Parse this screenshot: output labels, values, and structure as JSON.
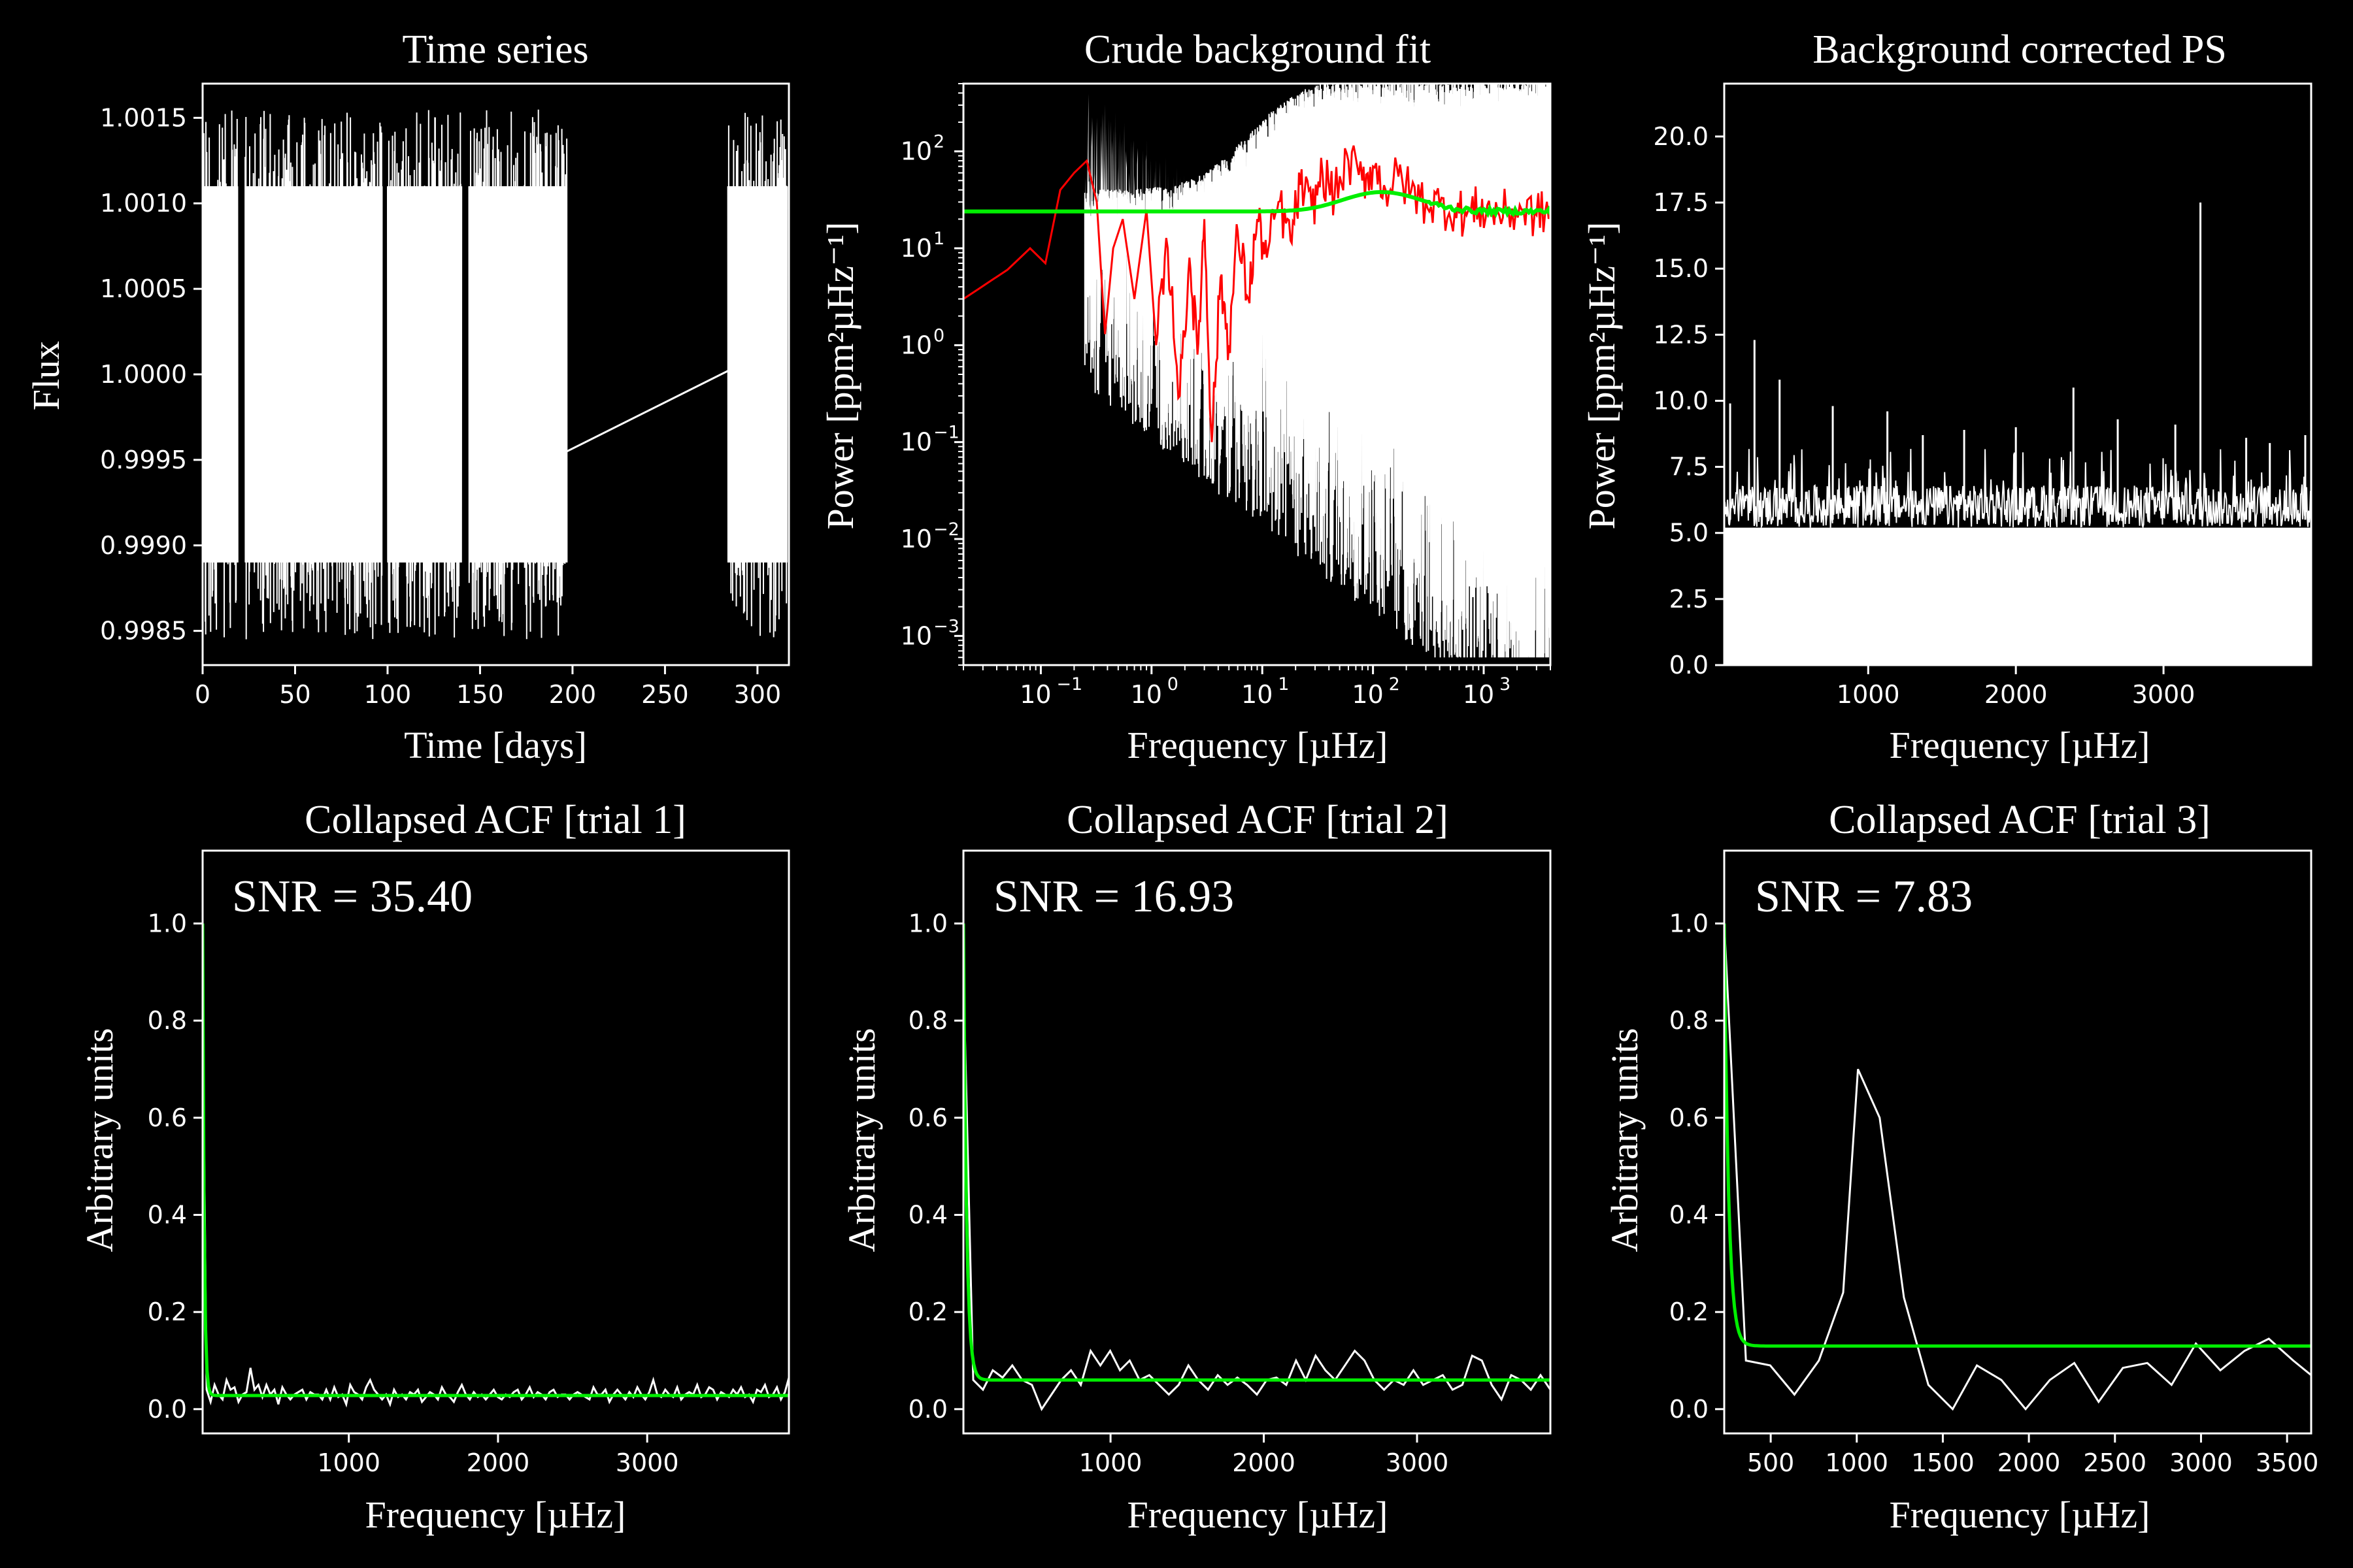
{
  "colors": {
    "background": "#000000",
    "data": "#ffffff",
    "smooth": "#ff0000",
    "fit": "#00ee00"
  },
  "chart_data": [
    {
      "id": "ts",
      "type": "line",
      "title": "Time series",
      "xlabel": "Time [days]",
      "ylabel": "Flux",
      "xlim": [
        0,
        317
      ],
      "ylim": [
        0.9983,
        1.0017
      ],
      "xticks": [
        0,
        50,
        100,
        150,
        200,
        250,
        300
      ],
      "yticks": [
        0.9985,
        0.999,
        0.9995,
        1.0,
        1.0005,
        1.001,
        1.0015
      ],
      "ytick_labels": [
        "0.9985",
        "0.9990",
        "0.9995",
        "1.0000",
        "1.0005",
        "1.0010",
        "1.0015"
      ],
      "segments": [
        [
          0,
          19
        ],
        [
          23,
          97
        ],
        [
          100,
          140
        ],
        [
          144,
          197
        ],
        [
          284,
          316
        ]
      ],
      "flux_band": [
        0.9989,
        1.0011
      ],
      "bridge": [
        [
          197,
          0.99955
        ],
        [
          284,
          1.00002
        ]
      ]
    },
    {
      "id": "bg",
      "type": "line",
      "title": "Crude background fit",
      "xlabel": "Frequency [µHz]",
      "ylabel": "Power [ppm²µHz⁻¹]",
      "xscale": "log",
      "yscale": "log",
      "xlim": [
        0.02,
        4000
      ],
      "ylim": [
        0.0005,
        500
      ],
      "xticks": [
        0.1,
        1,
        10,
        100,
        1000
      ],
      "xtick_exponents": [
        "−1",
        "0",
        "1",
        "2",
        "3"
      ],
      "yticks": [
        0.001,
        0.01,
        0.1,
        1,
        10,
        100
      ],
      "ytick_exponents": [
        "−3",
        "−2",
        "−1",
        "0",
        "1",
        "2"
      ],
      "tick_base": "10",
      "fit_level": 24,
      "fit_bump_peak": [
        120,
        38
      ],
      "smooth_series": {
        "x": [
          0.02,
          0.05,
          0.08,
          0.11,
          0.15,
          0.2,
          0.26,
          0.32,
          0.38,
          0.45,
          0.55,
          0.7,
          0.9,
          1.1,
          1.4,
          1.8,
          2.2,
          2.6,
          3.0,
          3.5,
          4.2,
          5,
          6,
          7.5,
          9,
          11,
          14,
          18,
          22,
          28,
          35,
          45,
          60,
          80,
          100,
          130,
          170,
          220,
          300,
          400,
          550,
          700,
          900,
          1200,
          1600,
          2200,
          3000,
          4000
        ],
        "y": [
          3,
          6,
          10,
          7,
          40,
          60,
          80,
          30,
          1.3,
          10,
          20,
          3,
          25,
          1,
          10,
          0.3,
          8,
          0.8,
          20,
          0.1,
          5,
          1,
          15,
          3,
          20,
          8,
          30,
          12,
          45,
          25,
          60,
          35,
          80,
          50,
          70,
          40,
          55,
          38,
          30,
          28,
          25,
          22,
          26,
          24,
          23,
          25,
          22,
          24
        ]
      }
    },
    {
      "id": "bc",
      "type": "line",
      "title": "Background corrected PS",
      "xlabel": "Frequency [µHz]",
      "ylabel": "Power [ppm²µHz⁻¹]",
      "xlim": [
        25,
        4000
      ],
      "ylim": [
        0,
        22
      ],
      "xticks": [
        1000,
        2000,
        3000
      ],
      "yticks": [
        0,
        2.5,
        5,
        7.5,
        10,
        12.5,
        15,
        17.5,
        20
      ],
      "ytick_labels": [
        "0.0",
        "2.5",
        "5.0",
        "7.5",
        "10.0",
        "12.5",
        "15.0",
        "17.5",
        "20.0"
      ],
      "floor_band": [
        5.2,
        6.8
      ],
      "peaks": [
        [
          65,
          9.9
        ],
        [
          230,
          12.3
        ],
        [
          400,
          10.8
        ],
        [
          760,
          9.8
        ],
        [
          1130,
          9.6
        ],
        [
          1370,
          8.7
        ],
        [
          1650,
          8.9
        ],
        [
          2000,
          9.0
        ],
        [
          2390,
          10.5
        ],
        [
          2690,
          9.3
        ],
        [
          3080,
          9.1
        ],
        [
          3250,
          17.5
        ],
        [
          3560,
          8.6
        ],
        [
          3720,
          8.4
        ],
        [
          3960,
          8.7
        ]
      ]
    },
    {
      "id": "acf1",
      "type": "line",
      "title": "Collapsed ACF [trial 1]",
      "xlabel": "Frequency [µHz]",
      "ylabel": "Arbitrary units",
      "annotation": "SNR = 35.40",
      "xlim": [
        20,
        3950
      ],
      "ylim": [
        -0.05,
        1.15
      ],
      "xticks": [
        1000,
        2000,
        3000
      ],
      "yticks": [
        0,
        0.2,
        0.4,
        0.6,
        0.8,
        1.0
      ],
      "ytick_labels": [
        "0.0",
        "0.2",
        "0.4",
        "0.6",
        "0.8",
        "1.0"
      ],
      "fit": {
        "start": 1.0,
        "decay": 10,
        "level": 0.028
      },
      "acf_y": [
        0.85,
        0.04,
        0.015,
        0.05,
        0.03,
        0.02,
        0.06,
        0.04,
        0.045,
        0.015,
        0.03,
        0.035,
        0.085,
        0.04,
        0.05,
        0.025,
        0.05,
        0.03,
        0.04,
        0.01,
        0.045,
        0.03,
        0.02,
        0.03,
        0.035,
        0.04,
        0.02,
        0.035,
        0.03,
        0.03,
        0.02,
        0.04,
        0.02,
        0.045,
        0.025,
        0.03,
        0.01,
        0.05,
        0.035,
        0.03,
        0.02,
        0.045,
        0.06,
        0.04,
        0.03,
        0.02,
        0.03,
        0.01,
        0.04,
        0.025,
        0.03,
        0.02,
        0.035,
        0.03,
        0.04,
        0.015,
        0.025,
        0.035,
        0.03,
        0.02,
        0.045,
        0.03,
        0.025,
        0.015,
        0.035,
        0.05,
        0.03,
        0.02,
        0.035,
        0.025,
        0.03,
        0.02,
        0.03,
        0.04,
        0.025,
        0.02,
        0.03,
        0.025,
        0.035,
        0.04,
        0.02,
        0.03,
        0.045,
        0.025,
        0.035,
        0.03,
        0.02,
        0.035,
        0.04,
        0.025,
        0.03,
        0.03,
        0.02,
        0.03,
        0.035,
        0.03,
        0.025,
        0.02,
        0.045,
        0.03,
        0.03,
        0.04,
        0.015,
        0.03,
        0.04,
        0.03,
        0.02,
        0.035,
        0.025,
        0.045,
        0.03,
        0.02,
        0.035,
        0.06,
        0.03,
        0.025,
        0.04,
        0.03,
        0.025,
        0.045,
        0.02,
        0.03,
        0.035,
        0.03,
        0.05,
        0.025,
        0.03,
        0.045,
        0.04,
        0.02,
        0.035,
        0.03,
        0.025,
        0.04,
        0.03,
        0.045,
        0.025,
        0.03,
        0.015,
        0.04,
        0.035,
        0.05,
        0.025,
        0.03,
        0.045,
        0.02,
        0.035,
        0.065
      ]
    },
    {
      "id": "acf2",
      "type": "line",
      "title": "Collapsed ACF [trial 2]",
      "xlabel": "Frequency [µHz]",
      "ylabel": "Arbitrary units",
      "annotation": "SNR = 16.93",
      "xlim": [
        40,
        3870
      ],
      "ylim": [
        -0.05,
        1.15
      ],
      "xticks": [
        1000,
        2000,
        3000
      ],
      "yticks": [
        0,
        0.2,
        0.4,
        0.6,
        0.8,
        1.0
      ],
      "ytick_labels": [
        "0.0",
        "0.2",
        "0.4",
        "0.6",
        "0.8",
        "1.0"
      ],
      "fit": {
        "start": 1.0,
        "decay": 20,
        "level": 0.06
      },
      "acf_y": [
        0.9,
        0.06,
        0.04,
        0.08,
        0.065,
        0.09,
        0.06,
        0.05,
        0.0,
        0.03,
        0.06,
        0.08,
        0.05,
        0.12,
        0.09,
        0.12,
        0.08,
        0.1,
        0.06,
        0.07,
        0.05,
        0.03,
        0.05,
        0.09,
        0.06,
        0.04,
        0.07,
        0.05,
        0.065,
        0.05,
        0.03,
        0.06,
        0.065,
        0.05,
        0.1,
        0.06,
        0.11,
        0.08,
        0.06,
        0.09,
        0.12,
        0.1,
        0.06,
        0.04,
        0.06,
        0.05,
        0.08,
        0.05,
        0.06,
        0.07,
        0.04,
        0.05,
        0.11,
        0.1,
        0.05,
        0.02,
        0.07,
        0.06,
        0.04,
        0.07,
        0.04
      ]
    },
    {
      "id": "acf3",
      "type": "line",
      "title": "Collapsed ACF [trial 3]",
      "xlabel": "Frequency [µHz]",
      "ylabel": "Arbitrary units",
      "annotation": "SNR = 7.83",
      "xlim": [
        230,
        3640
      ],
      "ylim": [
        -0.05,
        1.15
      ],
      "xticks": [
        500,
        1000,
        1500,
        2000,
        2500,
        3000,
        3500
      ],
      "yticks": [
        0,
        0.2,
        0.4,
        0.6,
        0.8,
        1.0
      ],
      "ytick_labels": [
        "0.0",
        "0.2",
        "0.4",
        "0.6",
        "0.8",
        "1.0"
      ],
      "fit": {
        "start": 1.0,
        "decay": 25,
        "level": 0.13
      },
      "acf_x": [
        230,
        356,
        497,
        638,
        780,
        921,
        1007,
        1133,
        1274,
        1416,
        1557,
        1698,
        1840,
        1981,
        2122,
        2264,
        2405,
        2546,
        2688,
        2829,
        2970,
        3112,
        3253,
        3394,
        3536,
        3640
      ],
      "acf_y": [
        1.0,
        0.1,
        0.09,
        0.03,
        0.1,
        0.24,
        0.7,
        0.6,
        0.23,
        0.05,
        0.0,
        0.09,
        0.06,
        0.0,
        0.06,
        0.095,
        0.015,
        0.085,
        0.095,
        0.05,
        0.135,
        0.08,
        0.12,
        0.145,
        0.1,
        0.07
      ]
    }
  ]
}
